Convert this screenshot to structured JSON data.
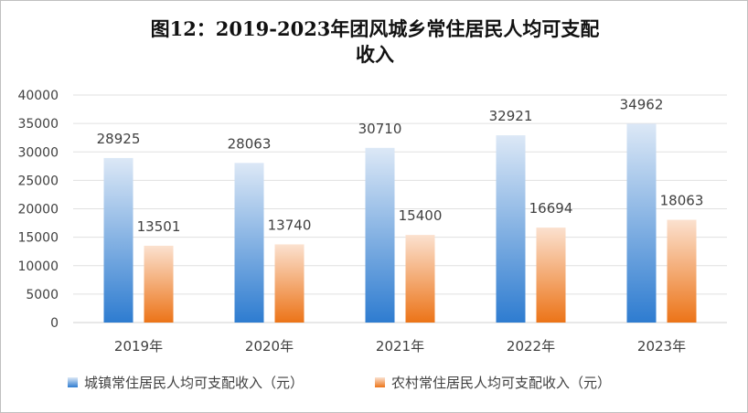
{
  "title_line1": "图12：2019-2023年团风城乡常住居民人均可支配",
  "title_line2": "收入",
  "chart_data": {
    "type": "bar",
    "title": "图12：2019-2023年团风城乡常住居民人均可支配收入",
    "categories": [
      "2019年",
      "2020年",
      "2021年",
      "2022年",
      "2023年"
    ],
    "series": [
      {
        "name": "城镇常住居民人均可支配收入（元）",
        "values": [
          28925,
          28063,
          30710,
          32921,
          34962
        ],
        "color_top": "#dce8f6",
        "color_bottom": "#2e7cd0"
      },
      {
        "name": "农村常住居民人均可支配收入（元）",
        "values": [
          13501,
          13740,
          15400,
          16694,
          18063
        ],
        "color_top": "#fbe1cf",
        "color_bottom": "#ec7418"
      }
    ],
    "ylim": [
      0,
      40000
    ],
    "yticks": [
      0,
      5000,
      10000,
      15000,
      20000,
      25000,
      30000,
      35000,
      40000
    ],
    "xlabel": "",
    "ylabel": "",
    "grid": true,
    "legend_position": "bottom"
  }
}
